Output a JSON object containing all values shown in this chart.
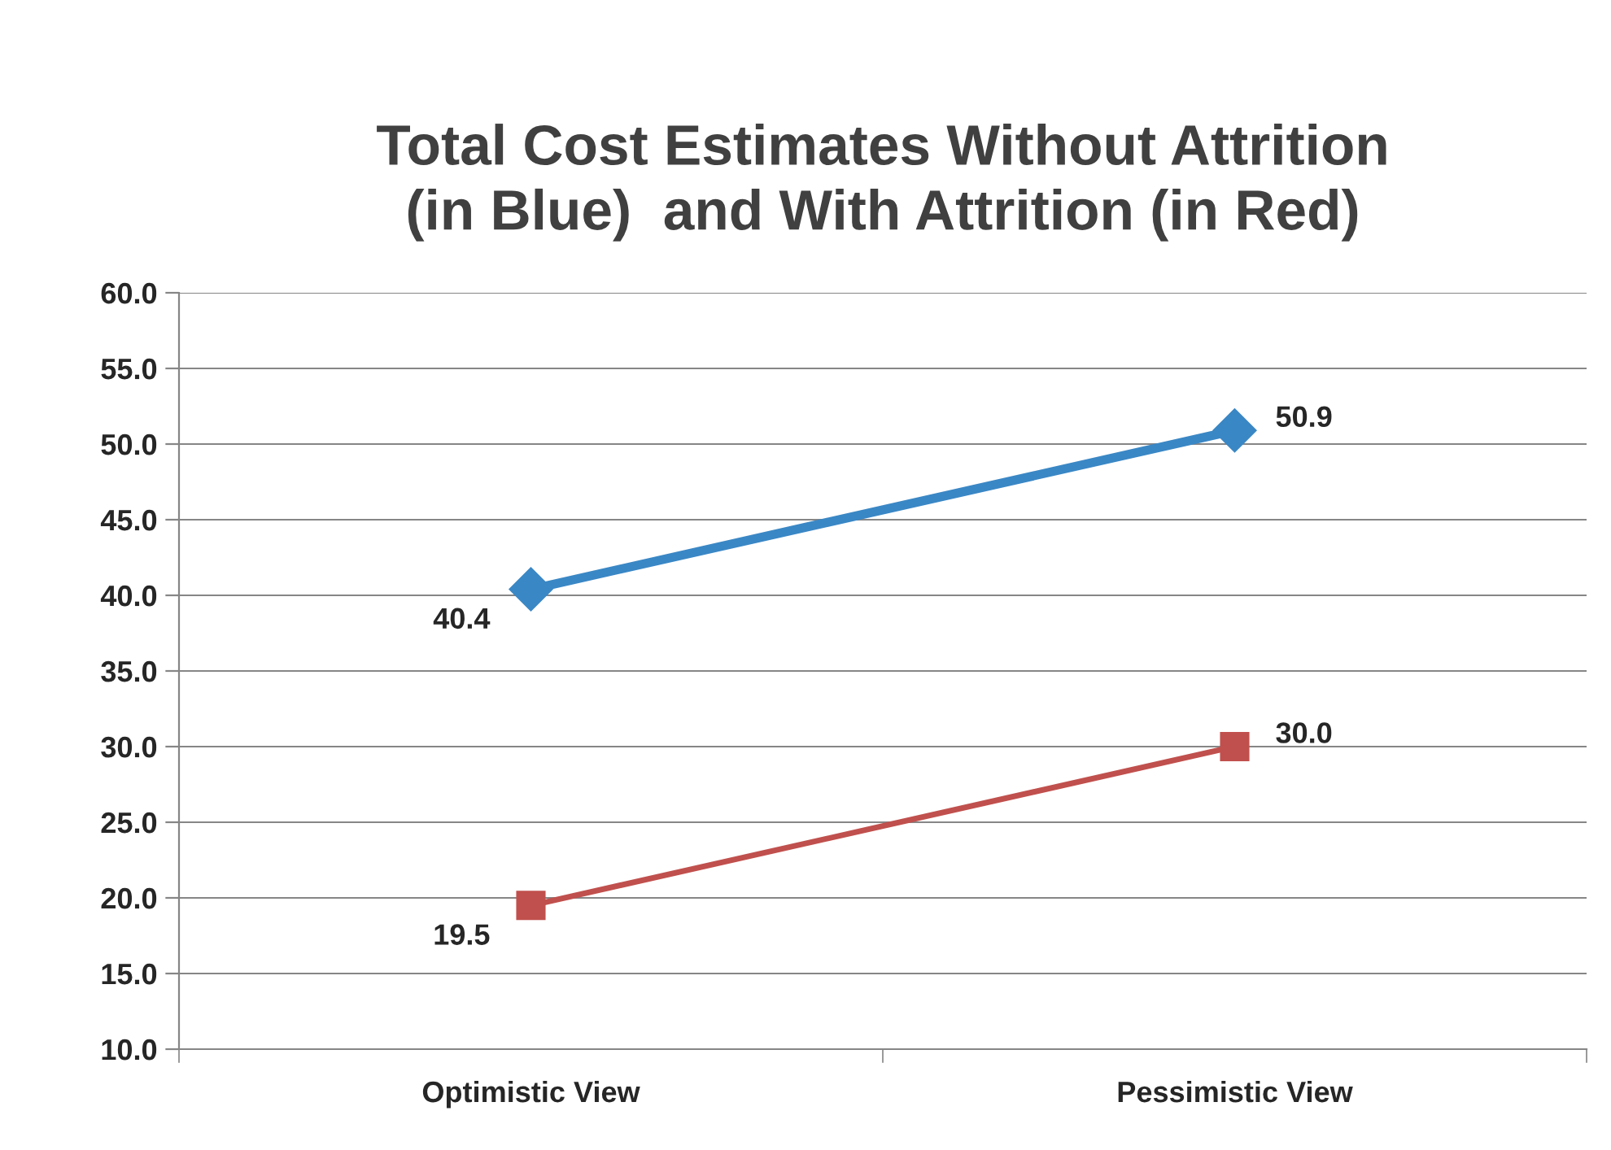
{
  "chart_data": {
    "type": "line",
    "title": "Total Cost Estimates Without Attrition\n(in Blue)  and With Attrition (in Red)",
    "categories": [
      "Optimistic View",
      "Pessimistic View"
    ],
    "series": [
      {
        "color": "#3a87c5",
        "values": [
          40.4,
          50.9
        ],
        "value_labels": [
          "40.4",
          "50.9"
        ],
        "marker": "diamond"
      },
      {
        "color": "#c0504d",
        "values": [
          19.5,
          30.0
        ],
        "value_labels": [
          "19.5",
          "30.0"
        ],
        "marker": "square"
      }
    ],
    "ylim": [
      10,
      60
    ],
    "yticks": [
      {
        "value": 10,
        "label": "10.0"
      },
      {
        "value": 15,
        "label": "15.0"
      },
      {
        "value": 20,
        "label": "20.0"
      },
      {
        "value": 25,
        "label": "25.0"
      },
      {
        "value": 30,
        "label": "30.0"
      },
      {
        "value": 35,
        "label": "35.0"
      },
      {
        "value": 40,
        "label": "40.0"
      },
      {
        "value": 45,
        "label": "45.0"
      },
      {
        "value": 50,
        "label": "50.0"
      },
      {
        "value": 55,
        "label": "55.0"
      },
      {
        "value": 60,
        "label": "60.0"
      }
    ],
    "grid": "y",
    "line_style": "solid"
  }
}
